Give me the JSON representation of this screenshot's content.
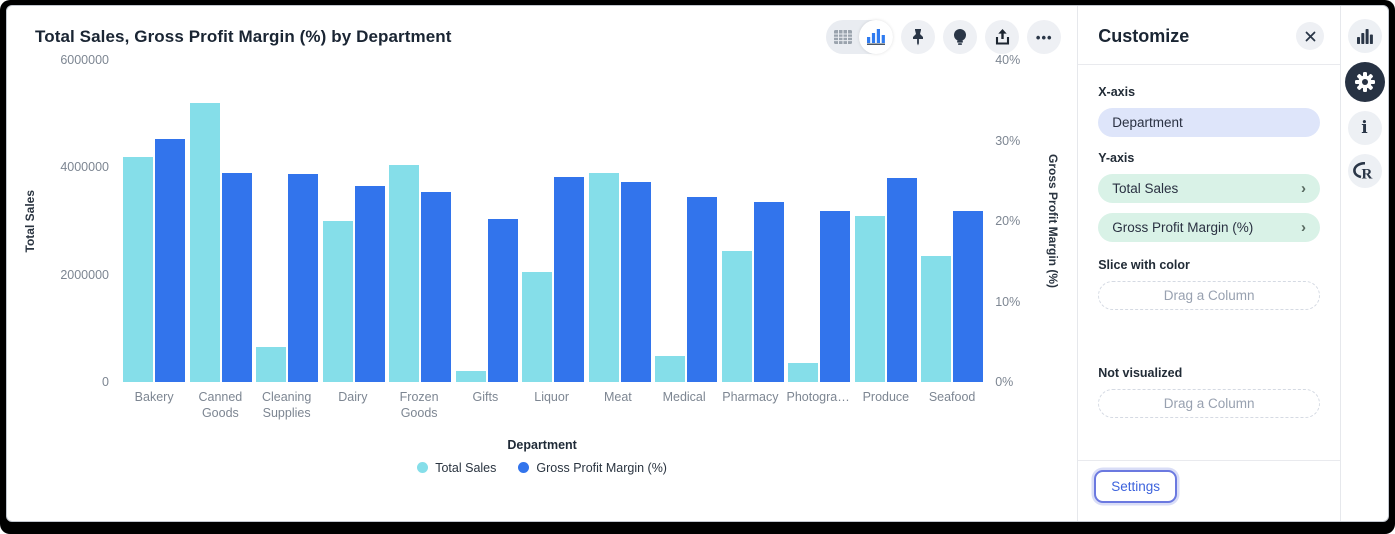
{
  "header": {
    "title": "Total Sales, Gross Profit Margin (%) by Department",
    "toolbar": {
      "ellipsis_glyph": "•••",
      "icons": [
        "table-view",
        "chart-view",
        "pin",
        "lightbulb",
        "share",
        "more-options"
      ]
    }
  },
  "chart_data": {
    "type": "bar",
    "title": "Total Sales, Gross Profit Margin (%) by Department",
    "categories": [
      "Bakery",
      "Canned Goods",
      "Cleaning Supplies",
      "Dairy",
      "Frozen Goods",
      "Gifts",
      "Liquor",
      "Meat",
      "Medical",
      "Pharmacy",
      "Photogra…",
      "Produce",
      "Seafood"
    ],
    "series": [
      {
        "name": "Total Sales",
        "axis": "left",
        "color": "#85dee9",
        "values": [
          4200000,
          5200000,
          650000,
          3000000,
          4050000,
          200000,
          2050000,
          3900000,
          480000,
          2450000,
          350000,
          3100000,
          2350000
        ]
      },
      {
        "name": "Gross Profit Margin (%)",
        "axis": "right",
        "color": "#3274ec",
        "values": [
          30.2,
          26.0,
          25.9,
          24.3,
          23.6,
          20.3,
          25.5,
          24.9,
          23.0,
          22.4,
          21.3,
          25.3,
          21.2
        ]
      }
    ],
    "left_axis": {
      "label": "Total Sales",
      "max": 6000000,
      "ticks": [
        "0",
        "2000000",
        "4000000",
        "6000000"
      ]
    },
    "right_axis": {
      "label": "Gross Profit Margin (%)",
      "max": 40,
      "ticks": [
        "0%",
        "10%",
        "20%",
        "30%",
        "40%"
      ]
    },
    "xlabel": "Department",
    "legend_position": "bottom",
    "grid": false
  },
  "panel": {
    "title": "Customize",
    "x_axis_label": "X-axis",
    "x_axis_value": "Department",
    "y_axis_label": "Y-axis",
    "y_axis_values": [
      "Total Sales",
      "Gross Profit Margin (%)"
    ],
    "slice_label": "Slice with color",
    "slice_placeholder": "Drag a Column",
    "not_visualized_label": "Not visualized",
    "not_visualized_placeholder": "Drag a Column",
    "settings_label": "Settings"
  },
  "rail": {
    "icons": [
      "bar-chart",
      "gear",
      "info",
      "r-logo"
    ],
    "info_glyph": "i"
  },
  "colors": {
    "series_total_sales": "#85dee9",
    "series_gross_profit_margin": "#3274ec",
    "pill_x_axis": "#dee5fa",
    "pill_y_axis": "#d9f2e7",
    "settings_accent": "#3d63dd",
    "active_icon_bg": "#273243"
  }
}
